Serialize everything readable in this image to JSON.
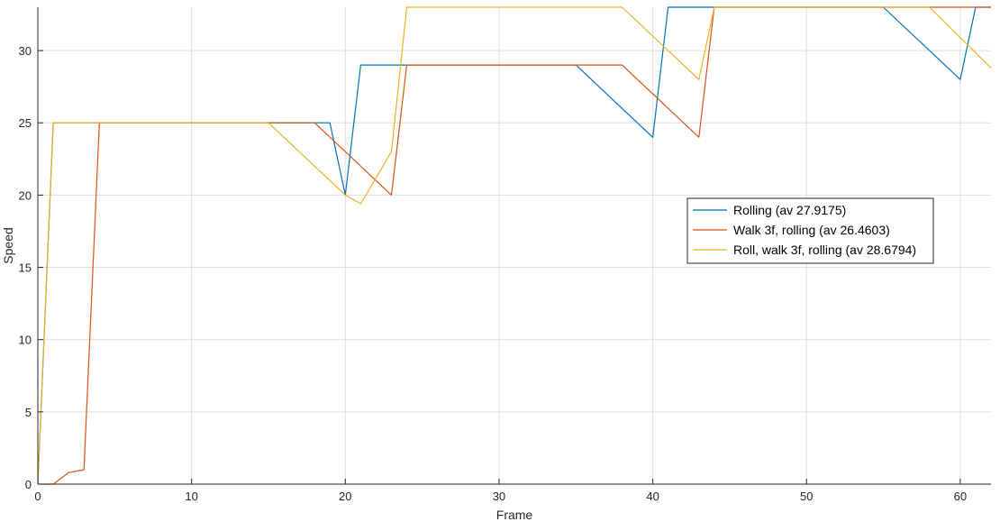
{
  "chart_data": {
    "type": "line",
    "title": "",
    "xlabel": "Frame",
    "ylabel": "Speed",
    "xlim": [
      0,
      62
    ],
    "ylim": [
      0,
      33
    ],
    "x_ticks": [
      0,
      10,
      20,
      30,
      40,
      50,
      60
    ],
    "y_ticks": [
      0,
      5,
      10,
      15,
      20,
      25,
      30
    ],
    "grid": true,
    "legend_position": "right-center",
    "series": [
      {
        "name": "Rolling (av 27.9175)",
        "color": "#0072BD",
        "points": [
          [
            0,
            0
          ],
          [
            1,
            25
          ],
          [
            19,
            25
          ],
          [
            20,
            20
          ],
          [
            21,
            29
          ],
          [
            35,
            29
          ],
          [
            40,
            24
          ],
          [
            41,
            33
          ],
          [
            55,
            33
          ],
          [
            60,
            28
          ],
          [
            61,
            33
          ],
          [
            62,
            33
          ]
        ]
      },
      {
        "name": "Walk 3f, rolling (av 26.4603)",
        "color": "#D95319",
        "points": [
          [
            0,
            0
          ],
          [
            1,
            0
          ],
          [
            2,
            0.8
          ],
          [
            3,
            1
          ],
          [
            4,
            25
          ],
          [
            18,
            25
          ],
          [
            23,
            20
          ],
          [
            24,
            29
          ],
          [
            38,
            29
          ],
          [
            43,
            24
          ],
          [
            44,
            33
          ],
          [
            62,
            33
          ]
        ]
      },
      {
        "name": "Roll, walk 3f, rolling (av 28.6794)",
        "color": "#EDB120",
        "points": [
          [
            0,
            0
          ],
          [
            1,
            25
          ],
          [
            15,
            25
          ],
          [
            20,
            20
          ],
          [
            21,
            19.4
          ],
          [
            23,
            23
          ],
          [
            24,
            33
          ],
          [
            38,
            33
          ],
          [
            43,
            28
          ],
          [
            44,
            33
          ],
          [
            58,
            33
          ],
          [
            62,
            28.8
          ]
        ]
      }
    ]
  }
}
